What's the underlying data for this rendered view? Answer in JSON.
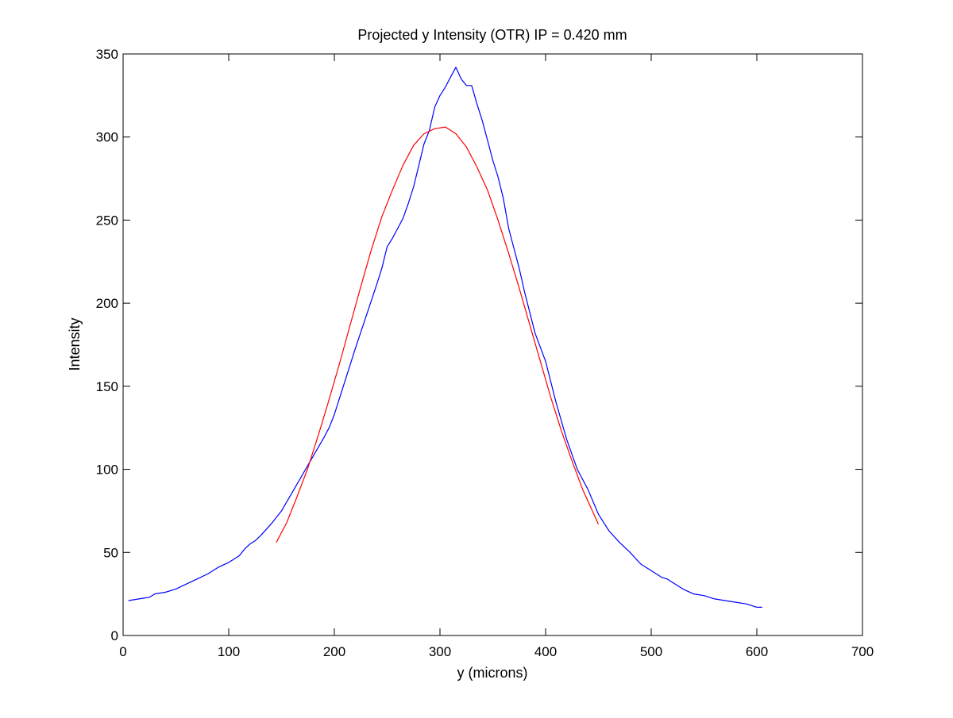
{
  "chart_data": {
    "type": "line",
    "title": "Projected y Intensity (OTR) IP = 0.420 mm",
    "xlabel": "y (microns)",
    "ylabel": "Intensity",
    "xlim": [
      0,
      700
    ],
    "ylim": [
      0,
      350
    ],
    "xticks": [
      0,
      100,
      200,
      300,
      400,
      500,
      600,
      700
    ],
    "yticks": [
      0,
      50,
      100,
      150,
      200,
      250,
      300,
      350
    ],
    "grid": false,
    "legend": "none",
    "series": [
      {
        "color": "#0000ff",
        "x": [
          5,
          15,
          25,
          30,
          40,
          50,
          60,
          70,
          80,
          90,
          100,
          110,
          115,
          120,
          125,
          130,
          140,
          150,
          160,
          170,
          180,
          190,
          195,
          200,
          210,
          215,
          220,
          230,
          240,
          245,
          250,
          255,
          260,
          265,
          270,
          275,
          280,
          285,
          290,
          295,
          300,
          305,
          310,
          315,
          320,
          325,
          330,
          335,
          340,
          345,
          350,
          355,
          360,
          365,
          370,
          375,
          380,
          390,
          400,
          410,
          420,
          430,
          440,
          450,
          460,
          470,
          480,
          490,
          500,
          510,
          515,
          520,
          530,
          540,
          550,
          560,
          570,
          580,
          590,
          600,
          605
        ],
        "y": [
          21,
          22,
          23,
          25,
          26,
          28,
          31,
          34,
          37,
          41,
          44,
          48,
          52,
          55,
          57,
          60,
          67,
          75,
          86,
          97,
          108,
          119,
          125,
          133,
          153,
          163,
          173,
          192,
          211,
          221,
          234,
          239,
          245,
          251,
          260,
          270,
          283,
          296,
          304,
          318,
          325,
          330,
          336,
          342,
          335,
          331,
          331,
          320,
          310,
          298,
          286,
          276,
          263,
          245,
          233,
          221,
          207,
          182,
          165,
          140,
          118,
          100,
          88,
          73,
          63,
          56,
          50,
          43,
          39,
          35,
          34,
          32,
          28,
          25,
          24,
          22,
          21,
          20,
          19,
          17,
          17
        ]
      },
      {
        "color": "#ff0000",
        "x": [
          145,
          155,
          165,
          175,
          185,
          195,
          205,
          215,
          225,
          235,
          245,
          255,
          265,
          275,
          285,
          295,
          305,
          315,
          325,
          335,
          345,
          355,
          365,
          375,
          385,
          395,
          405,
          415,
          425,
          435,
          445,
          450
        ],
        "y": [
          56,
          68,
          84,
          101,
          121,
          142,
          164,
          187,
          210,
          232,
          252,
          268,
          283,
          295,
          302,
          305,
          306,
          302,
          294,
          282,
          268,
          250,
          230,
          209,
          187,
          165,
          143,
          123,
          105,
          88,
          74,
          67
        ]
      }
    ]
  }
}
